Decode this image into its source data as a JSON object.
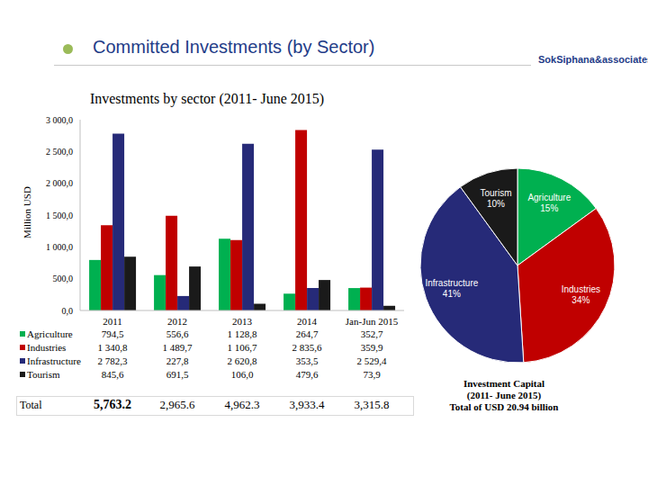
{
  "header": {
    "title": "Committed Investments (by Sector)",
    "logo": "SokSiphana&associates"
  },
  "chart_data": [
    {
      "type": "bar",
      "title": "Investments by sector (2011- June 2015)",
      "y_label": "Million USD",
      "categories": [
        "2011",
        "2012",
        "2013",
        "2014",
        "Jan-Jun 2015"
      ],
      "series": [
        {
          "name": "Agriculture",
          "color": "#00b050",
          "values": [
            794.5,
            556.6,
            1128.8,
            264.7,
            352.7
          ],
          "value_labels": [
            "794,5",
            "556,6",
            "1 128,8",
            "264,7",
            "352,7"
          ]
        },
        {
          "name": "Industries",
          "color": "#c00000",
          "values": [
            1340.8,
            1489.7,
            1106.7,
            2835.6,
            359.9
          ],
          "value_labels": [
            "1 340,8",
            "1 489,7",
            "1 106,7",
            "2 835,6",
            "359,9"
          ]
        },
        {
          "name": "Infrastructure",
          "color": "#262a78",
          "values": [
            2782.3,
            227.8,
            2620.8,
            353.5,
            2529.4
          ],
          "value_labels": [
            "2 782,3",
            "227,8",
            "2 620,8",
            "353,5",
            "2 529,4"
          ]
        },
        {
          "name": "Tourism",
          "color": "#1a1a1a",
          "values": [
            845.6,
            691.5,
            106.0,
            479.6,
            73.9
          ],
          "value_labels": [
            "845,6",
            "691,5",
            "106,0",
            "479,6",
            "73,9"
          ]
        }
      ],
      "totals": {
        "label": "Total",
        "values": [
          5763.2,
          2965.6,
          4962.3,
          3933.4,
          3315.8
        ],
        "value_labels": [
          "5,763.2",
          "2,965.6",
          "4,962.3",
          "3,933.4",
          "3,315.8"
        ]
      },
      "ylim": [
        0,
        3000
      ],
      "yticks": [
        {
          "value": 0,
          "label": "0,0"
        },
        {
          "value": 500,
          "label": "500,0"
        },
        {
          "value": 1000,
          "label": "1 000,0"
        },
        {
          "value": 1500,
          "label": "1 500,0"
        },
        {
          "value": 2000,
          "label": "2 000,0"
        },
        {
          "value": 2500,
          "label": "2 500,0"
        },
        {
          "value": 3000,
          "label": "3 000,0"
        }
      ],
      "grid": false
    },
    {
      "type": "pie",
      "categories": [
        "Agriculture",
        "Industries",
        "Infrastructure",
        "Tourism"
      ],
      "values": [
        15,
        34,
        41,
        10
      ],
      "value_labels": [
        "15%",
        "34%",
        "41%",
        "10%"
      ],
      "colors": [
        "#00b050",
        "#c00000",
        "#262a78",
        "#1a1a1a"
      ],
      "data_labels": true,
      "caption": [
        "Investment Capital",
        "(2011- June 2015)",
        "Total of USD 20.94 billion"
      ]
    }
  ]
}
